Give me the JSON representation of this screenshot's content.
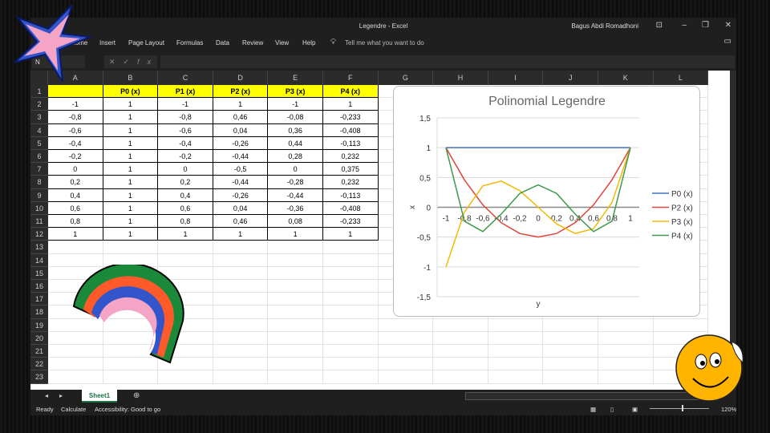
{
  "window": {
    "title": "Legendre  -  Excel",
    "user": "Bagus Abdi Romadhoni"
  },
  "ribbon": {
    "tabs": [
      "Home",
      "Insert",
      "Page Layout",
      "Formulas",
      "Data",
      "Review",
      "View",
      "Help"
    ],
    "tell_me": "Tell me what you want to do"
  },
  "formula_bar": {
    "name_box": "N",
    "fx": "fx",
    "value": ""
  },
  "columns": [
    "A",
    "B",
    "C",
    "D",
    "E",
    "F",
    "G",
    "H",
    "I",
    "J",
    "K",
    "L"
  ],
  "table": {
    "headers": [
      "",
      "P0 (x)",
      "P1 (x)",
      "P2 (x)",
      "P3 (x)",
      "P4 (x)"
    ],
    "rows": [
      [
        "-1",
        "1",
        "-1",
        "1",
        "-1",
        "1"
      ],
      [
        "-0,8",
        "1",
        "-0,8",
        "0,46",
        "-0,08",
        "-0,233"
      ],
      [
        "-0,6",
        "1",
        "-0,6",
        "0,04",
        "0,36",
        "-0,408"
      ],
      [
        "-0,4",
        "1",
        "-0,4",
        "-0,26",
        "0,44",
        "-0,113"
      ],
      [
        "-0,2",
        "1",
        "-0,2",
        "-0,44",
        "0,28",
        "0,232"
      ],
      [
        "0",
        "1",
        "0",
        "-0,5",
        "0",
        "0,375"
      ],
      [
        "0,2",
        "1",
        "0,2",
        "-0,44",
        "-0,28",
        "0,232"
      ],
      [
        "0,4",
        "1",
        "0,4",
        "-0,26",
        "-0,44",
        "-0,113"
      ],
      [
        "0,6",
        "1",
        "0,6",
        "0,04",
        "-0,36",
        "-0,408"
      ],
      [
        "0,8",
        "1",
        "0,8",
        "0,46",
        "0,08",
        "-0,233"
      ],
      [
        "1",
        "1",
        "1",
        "1",
        "1",
        "1"
      ]
    ]
  },
  "chart_data": {
    "type": "line",
    "title": "Polinomial Legendre",
    "xlabel": "y",
    "ylabel": "x",
    "categories": [
      "-1",
      "-0,8",
      "-0,6",
      "-0,4",
      "-0,2",
      "0",
      "0,2",
      "0,4",
      "0,6",
      "0,8",
      "1"
    ],
    "yticks": [
      "1,5",
      "1",
      "0,5",
      "0",
      "-0,5",
      "-1",
      "-1,5"
    ],
    "ylim": [
      -1.5,
      1.5
    ],
    "grid": true,
    "legend": "right",
    "series": [
      {
        "name": "P0 (x)",
        "color": "#4472c4",
        "values": [
          1,
          1,
          1,
          1,
          1,
          1,
          1,
          1,
          1,
          1,
          1
        ]
      },
      {
        "name": "P2 (x)",
        "color": "#e0453a",
        "values": [
          1,
          0.46,
          0.04,
          -0.26,
          -0.44,
          -0.5,
          -0.44,
          -0.26,
          0.04,
          0.46,
          1
        ]
      },
      {
        "name": "P3 (x)",
        "color": "#f5b800",
        "values": [
          -1,
          -0.08,
          0.36,
          0.44,
          0.28,
          0,
          -0.28,
          -0.44,
          -0.36,
          0.08,
          1
        ]
      },
      {
        "name": "P4 (x)",
        "color": "#3c9a4a",
        "values": [
          1,
          -0.233,
          -0.408,
          -0.113,
          0.232,
          0.375,
          0.232,
          -0.113,
          -0.408,
          -0.233,
          1
        ]
      }
    ]
  },
  "sheet_tabs": {
    "active": "Sheet1"
  },
  "status": {
    "ready": "Ready",
    "calculate": "Calculate",
    "accessibility": "Accessibility: Good to go",
    "zoom": "120%"
  }
}
